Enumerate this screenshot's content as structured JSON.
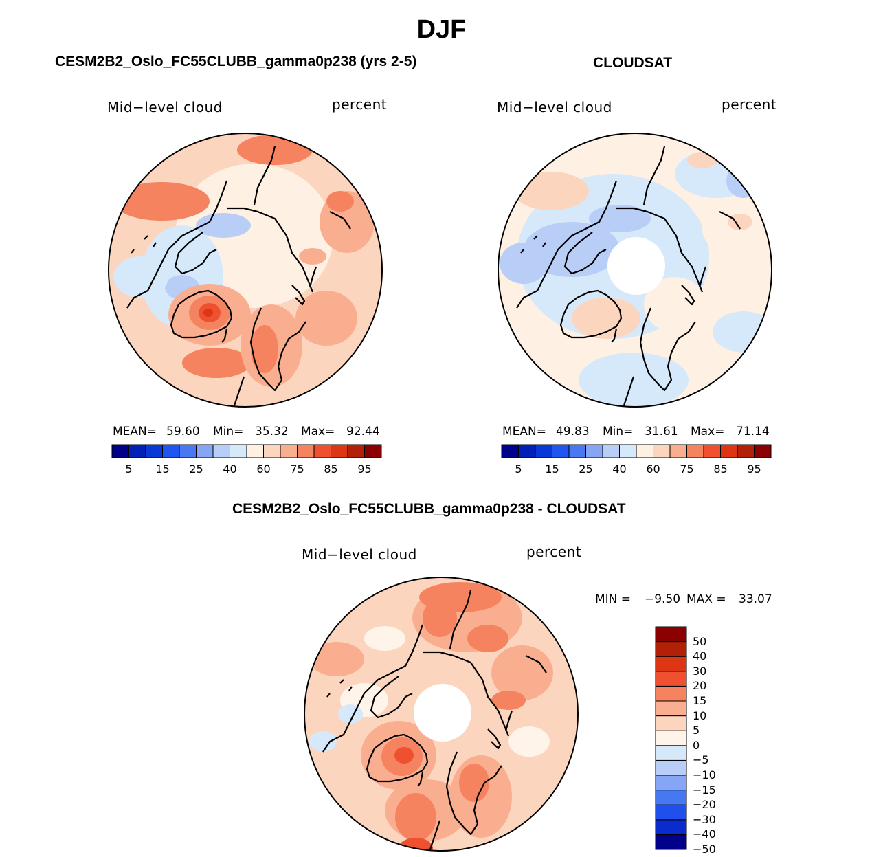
{
  "figure": {
    "title": "DJF",
    "variable": "Mid−level cloud",
    "units": "percent"
  },
  "panels": {
    "model": {
      "title": "CESM2B2_Oslo_FC55CLUBB_gamma0p238 (yrs 2-5)",
      "mean_label": "MEAN=",
      "mean": "59.60",
      "min_label": "Min=",
      "min": "35.32",
      "max_label": "Max=",
      "max": "92.44"
    },
    "obs": {
      "title": "CLOUDSAT",
      "mean_label": "MEAN=",
      "mean": "49.83",
      "min_label": "Min=",
      "min": "31.61",
      "max_label": "Max=",
      "max": "71.14"
    },
    "diff": {
      "title": "CESM2B2_Oslo_FC55CLUBB_gamma0p238 - CLOUDSAT",
      "min_label": "MIN =",
      "min": "−9.50",
      "max_label": "MAX =",
      "max": "33.07"
    }
  },
  "colorbar_abs": {
    "colors": [
      "#00008b",
      "#0020b8",
      "#0838d8",
      "#2055f0",
      "#4a78f2",
      "#86a6f4",
      "#b8cef6",
      "#d6e9fb",
      "#fff0e4",
      "#fcd5bf",
      "#faae90",
      "#f5835f",
      "#ee5030",
      "#dc3615",
      "#b32008",
      "#8b0000"
    ],
    "tick_labels": [
      "5",
      "15",
      "25",
      "40",
      "60",
      "75",
      "85",
      "95"
    ]
  },
  "colorbar_diff": {
    "colors": [
      "#00008b",
      "#0b2ccd",
      "#1f4fec",
      "#4678f2",
      "#84a6f4",
      "#b8cef6",
      "#d6e9fb",
      "#fff4ea",
      "#fcd5bf",
      "#faae90",
      "#f5835f",
      "#ee5030",
      "#dc3615",
      "#b32008",
      "#8b0000"
    ],
    "tick_labels": [
      "50",
      "40",
      "30",
      "20",
      "15",
      "10",
      "5",
      "0",
      "−5",
      "−10",
      "−15",
      "−20",
      "−30",
      "−40",
      "−50"
    ]
  }
}
